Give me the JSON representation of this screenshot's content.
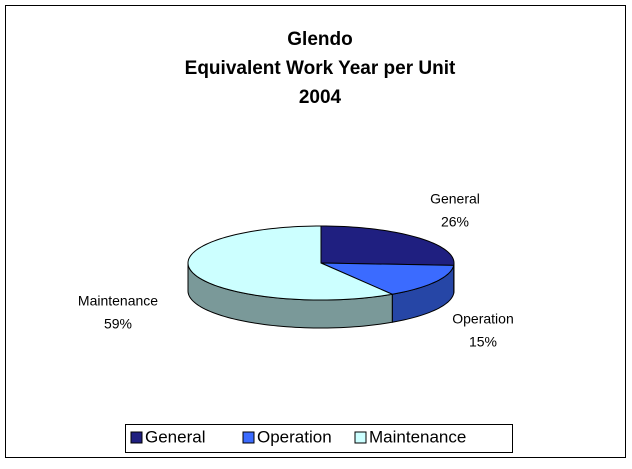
{
  "chart_data": {
    "type": "pie3d",
    "title": [
      "Glendo",
      "Equivalent Work Year per Unit",
      "2004"
    ],
    "categories": [
      "General",
      "Operation",
      "Maintenance"
    ],
    "values": [
      26,
      15,
      59
    ],
    "value_labels": [
      "26%",
      "15%",
      "59%"
    ],
    "colors": [
      "#1f1f80",
      "#3b6bff",
      "#ccffff"
    ],
    "legend": "bottom"
  }
}
